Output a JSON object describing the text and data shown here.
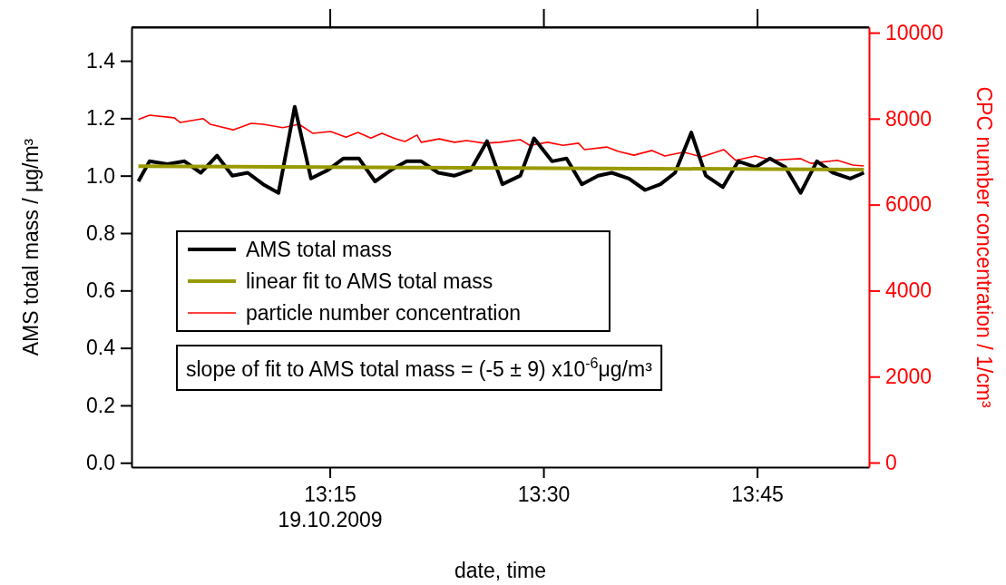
{
  "chart_data": {
    "type": "line",
    "xlabel": "date, time",
    "ylabel": "AMS total mass / µg/m³",
    "y2label": "CPC number concentration / 1/cm³",
    "xlim": [
      13.018,
      13.881
    ],
    "xticks": [
      {
        "value": 13.25,
        "label": "13:15\n19.10.2009"
      },
      {
        "value": 13.5,
        "label": "13:30"
      },
      {
        "value": 13.75,
        "label": "13:45"
      }
    ],
    "ylim": [
      -0.015,
      1.517
    ],
    "yticks": [
      {
        "value": 0,
        "label": "0.0"
      },
      {
        "value": 0.2,
        "label": "0.2"
      },
      {
        "value": 0.4,
        "label": "0.4"
      },
      {
        "value": 0.6,
        "label": "0.6"
      },
      {
        "value": 0.8,
        "label": "0.8"
      },
      {
        "value": 1.0,
        "label": "1.0"
      },
      {
        "value": 1.2,
        "label": "1.2"
      },
      {
        "value": 1.4,
        "label": "1.4"
      }
    ],
    "y2lim": [
      -105,
      10127
    ],
    "y2ticks": [
      0,
      2000,
      4000,
      6000,
      8000,
      10000
    ],
    "legend": "left",
    "grid": false,
    "marker": "none",
    "line_style": "solid",
    "annotations": [
      "slope of fit to AMS total mass = (-5 ± 9) x10$^{-6}$μg/m³"
    ],
    "series": [
      {
        "name": "AMS total mass",
        "color": "#000000",
        "x": [
          13.026,
          13.039,
          13.06,
          13.08,
          13.099,
          13.118,
          13.136,
          13.154,
          13.172,
          13.19,
          13.209,
          13.228,
          13.248,
          13.266,
          13.284,
          13.303,
          13.322,
          13.34,
          13.357,
          13.377,
          13.396,
          13.415,
          13.434,
          13.452,
          13.473,
          13.489,
          13.51,
          13.527,
          13.545,
          13.564,
          13.58,
          13.6,
          13.619,
          13.637,
          13.654,
          13.673,
          13.69,
          13.71,
          13.728,
          13.748,
          13.765,
          13.783,
          13.801,
          13.82,
          13.839,
          13.859,
          13.875
        ],
        "values": [
          0.98,
          1.05,
          1.04,
          1.05,
          1.01,
          1.07,
          1.0,
          1.01,
          0.97,
          0.94,
          1.24,
          0.99,
          1.02,
          1.06,
          1.06,
          0.98,
          1.02,
          1.05,
          1.05,
          1.01,
          1.0,
          1.02,
          1.12,
          0.97,
          1.0,
          1.13,
          1.05,
          1.06,
          0.97,
          1.0,
          1.01,
          0.99,
          0.95,
          0.97,
          1.01,
          1.15,
          1.0,
          0.96,
          1.05,
          1.03,
          1.06,
          1.03,
          0.94,
          1.05,
          1.01,
          0.99,
          1.01
        ]
      },
      {
        "name": "linear fit to AMS total mass",
        "color": "#999900",
        "x": [
          13.026,
          13.875
        ],
        "values": [
          1.033,
          1.021
        ]
      },
      {
        "name": "particle number concentration",
        "color": "#ff0000",
        "axis": "y2",
        "x": [
          13.026,
          13.039,
          13.068,
          13.075,
          13.102,
          13.11,
          13.137,
          13.158,
          13.172,
          13.195,
          13.214,
          13.23,
          13.251,
          13.269,
          13.283,
          13.298,
          13.311,
          13.327,
          13.338,
          13.352,
          13.357,
          13.378,
          13.396,
          13.41,
          13.431,
          13.449,
          13.473,
          13.484,
          13.505,
          13.523,
          13.541,
          13.548,
          13.574,
          13.587,
          13.606,
          13.627,
          13.642,
          13.664,
          13.685,
          13.711,
          13.725,
          13.748,
          13.767,
          13.801,
          13.813,
          13.844,
          13.862,
          13.875
        ],
        "values": [
          7980,
          8080,
          8020,
          7910,
          8000,
          7870,
          7740,
          7890,
          7870,
          7790,
          7870,
          7660,
          7700,
          7570,
          7680,
          7550,
          7660,
          7530,
          7470,
          7620,
          7450,
          7530,
          7450,
          7490,
          7430,
          7450,
          7510,
          7380,
          7450,
          7380,
          7430,
          7280,
          7340,
          7240,
          7150,
          7260,
          7130,
          7220,
          7110,
          7280,
          7030,
          7130,
          7030,
          7070,
          6960,
          7030,
          6920,
          6900
        ]
      }
    ]
  }
}
